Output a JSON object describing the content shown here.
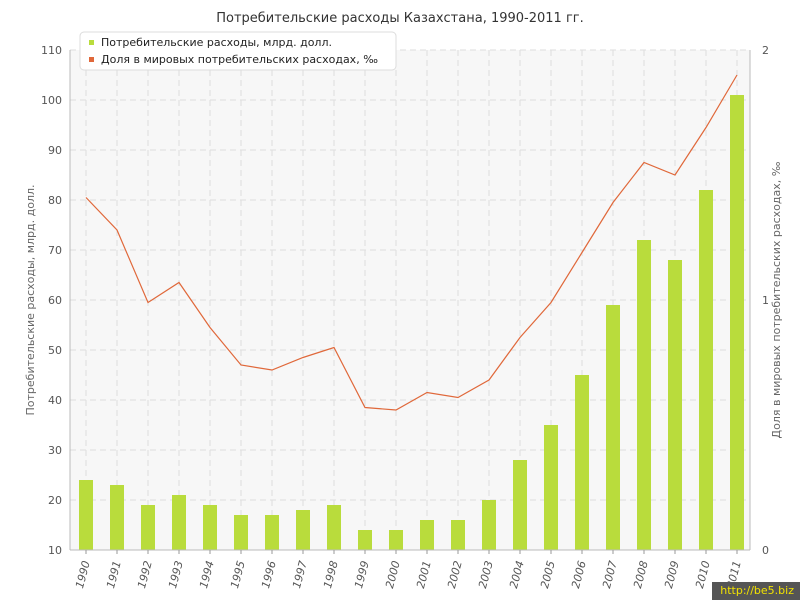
{
  "chart_data": {
    "type": "bar",
    "title": "Потребительские расходы Казахстана, 1990-2011 гг.",
    "ylabel": "Потребительские расходы, млрд. долл.",
    "y2label": "Доля в мировых потребительских расходах, ‰",
    "ylim": [
      10,
      110
    ],
    "y_ticks": [
      10,
      20,
      30,
      40,
      50,
      60,
      70,
      80,
      90,
      100,
      110
    ],
    "y2lim": [
      0,
      2
    ],
    "y2_ticks": [
      0,
      1,
      2
    ],
    "grid": true,
    "legend_position": "top-left",
    "categories": [
      "1990",
      "1991",
      "1992",
      "1993",
      "1994",
      "1995",
      "1996",
      "1997",
      "1998",
      "1999",
      "2000",
      "2001",
      "2002",
      "2003",
      "2004",
      "2005",
      "2006",
      "2007",
      "2008",
      "2009",
      "2010",
      "2011"
    ],
    "series": [
      {
        "name": "Потребительские расходы, млрд. долл.",
        "type": "bar",
        "axis": "left",
        "color": "#b9dc3c",
        "values": [
          24,
          23,
          19,
          21,
          19,
          17,
          17,
          18,
          19,
          14,
          14,
          16,
          16,
          20,
          28,
          35,
          45,
          59,
          72,
          68,
          82,
          101
        ]
      },
      {
        "name": "Доля в мировых потребительских расходах, ‰",
        "type": "line",
        "axis": "right",
        "color": "#e0683a",
        "values": [
          1.41,
          1.28,
          0.99,
          1.07,
          0.89,
          0.74,
          0.72,
          0.77,
          0.81,
          0.57,
          0.56,
          0.63,
          0.61,
          0.68,
          0.85,
          0.99,
          1.19,
          1.39,
          1.55,
          1.5,
          1.69,
          1.9
        ]
      }
    ]
  },
  "watermark": "http://be5.biz",
  "colors": {
    "bar": "#b9dc3c",
    "line": "#e0683a",
    "plot_background": "#f7f7f7",
    "grid": "#dddddd"
  }
}
